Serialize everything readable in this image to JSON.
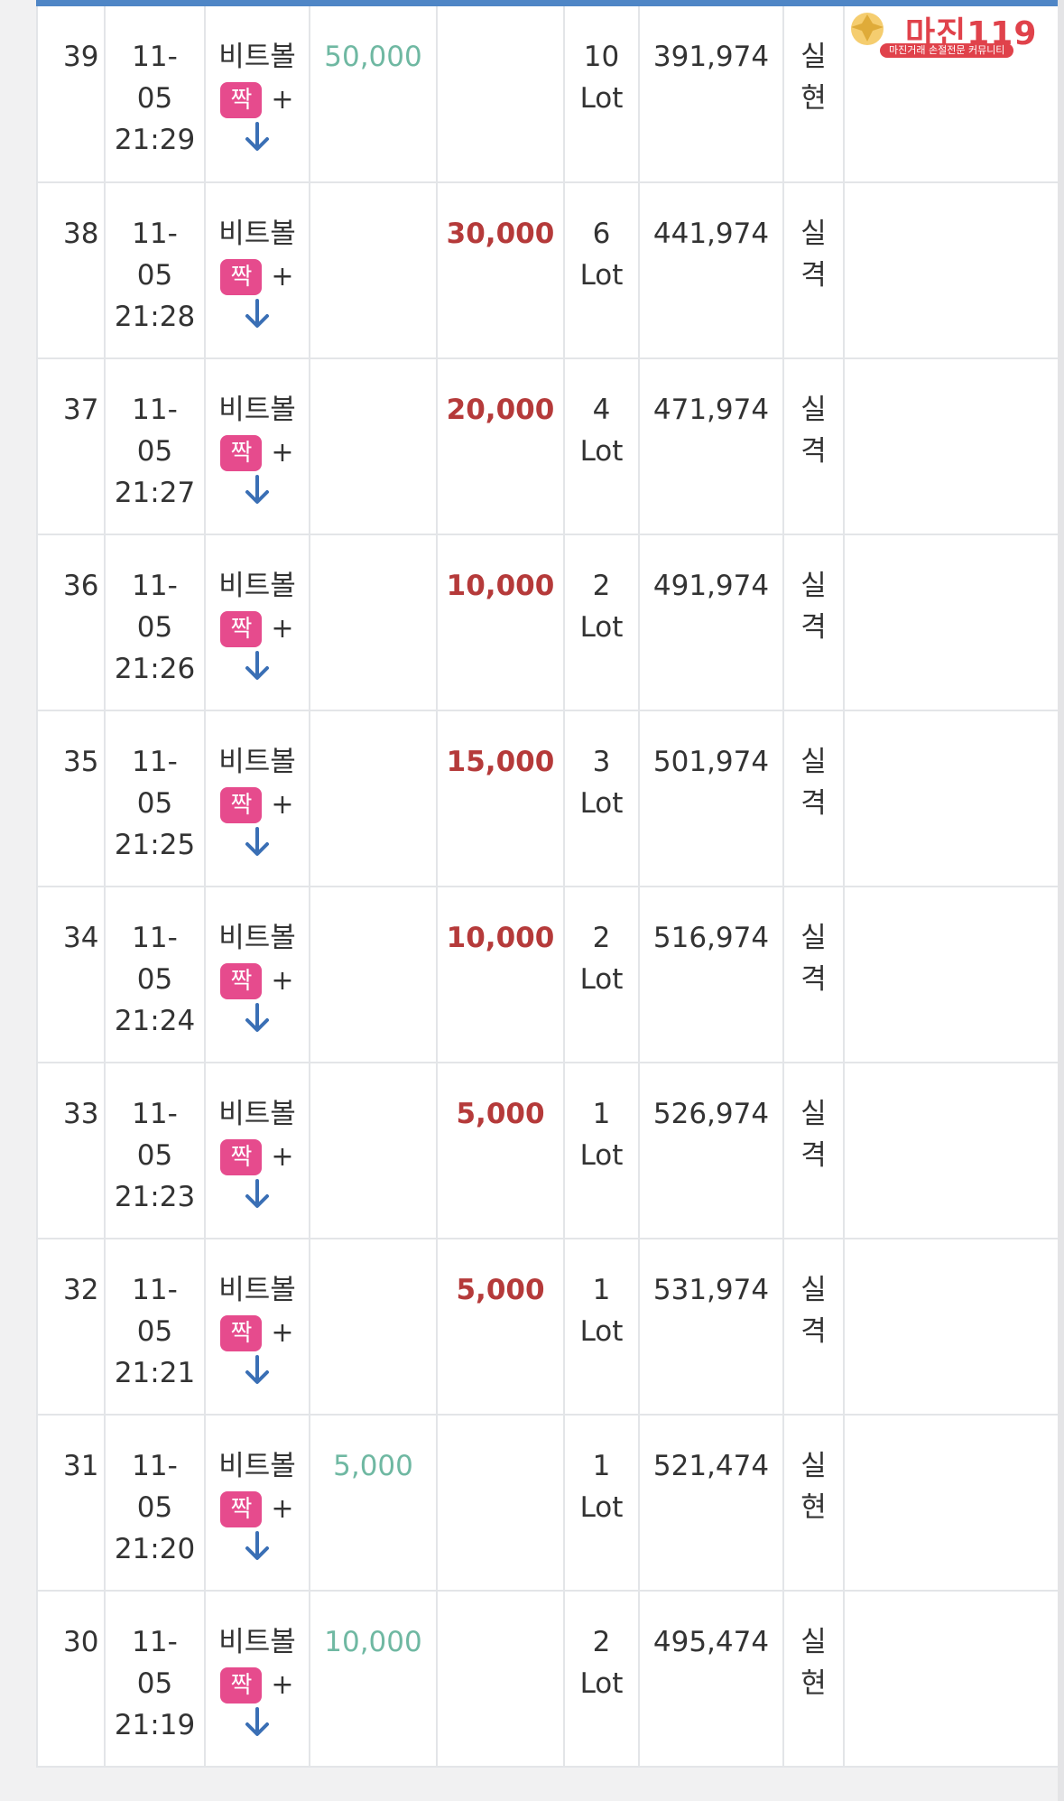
{
  "rows": [
    {
      "no": "39",
      "date": "11-",
      "date2": "05",
      "time": "21:29",
      "game": "비트볼",
      "pick": "짝",
      "plus": "+",
      "win": "50,000",
      "lose": "",
      "lot": "10",
      "lot_unit": "Lot",
      "balance": "391,974",
      "result1": "실",
      "result2": "현",
      "status": "win"
    },
    {
      "no": "38",
      "date": "11-",
      "date2": "05",
      "time": "21:28",
      "game": "비트볼",
      "pick": "짝",
      "plus": "+",
      "win": "",
      "lose": "30,000",
      "lot": "6",
      "lot_unit": "Lot",
      "balance": "441,974",
      "result1": "실",
      "result2": "격",
      "status": "lose"
    },
    {
      "no": "37",
      "date": "11-",
      "date2": "05",
      "time": "21:27",
      "game": "비트볼",
      "pick": "짝",
      "plus": "+",
      "win": "",
      "lose": "20,000",
      "lot": "4",
      "lot_unit": "Lot",
      "balance": "471,974",
      "result1": "실",
      "result2": "격",
      "status": "lose"
    },
    {
      "no": "36",
      "date": "11-",
      "date2": "05",
      "time": "21:26",
      "game": "비트볼",
      "pick": "짝",
      "plus": "+",
      "win": "",
      "lose": "10,000",
      "lot": "2",
      "lot_unit": "Lot",
      "balance": "491,974",
      "result1": "실",
      "result2": "격",
      "status": "lose"
    },
    {
      "no": "35",
      "date": "11-",
      "date2": "05",
      "time": "21:25",
      "game": "비트볼",
      "pick": "짝",
      "plus": "+",
      "win": "",
      "lose": "15,000",
      "lot": "3",
      "lot_unit": "Lot",
      "balance": "501,974",
      "result1": "실",
      "result2": "격",
      "status": "lose"
    },
    {
      "no": "34",
      "date": "11-",
      "date2": "05",
      "time": "21:24",
      "game": "비트볼",
      "pick": "짝",
      "plus": "+",
      "win": "",
      "lose": "10,000",
      "lot": "2",
      "lot_unit": "Lot",
      "balance": "516,974",
      "result1": "실",
      "result2": "격",
      "status": "lose"
    },
    {
      "no": "33",
      "date": "11-",
      "date2": "05",
      "time": "21:23",
      "game": "비트볼",
      "pick": "짝",
      "plus": "+",
      "win": "",
      "lose": "5,000",
      "lot": "1",
      "lot_unit": "Lot",
      "balance": "526,974",
      "result1": "실",
      "result2": "격",
      "status": "lose"
    },
    {
      "no": "32",
      "date": "11-",
      "date2": "05",
      "time": "21:21",
      "game": "비트볼",
      "pick": "짝",
      "plus": "+",
      "win": "",
      "lose": "5,000",
      "lot": "1",
      "lot_unit": "Lot",
      "balance": "531,974",
      "result1": "실",
      "result2": "격",
      "status": "lose"
    },
    {
      "no": "31",
      "date": "11-",
      "date2": "05",
      "time": "21:20",
      "game": "비트볼",
      "pick": "짝",
      "plus": "+",
      "win": "5,000",
      "lose": "",
      "lot": "1",
      "lot_unit": "Lot",
      "balance": "521,474",
      "result1": "실",
      "result2": "현",
      "status": "win"
    },
    {
      "no": "30",
      "date": "11-",
      "date2": "05",
      "time": "21:19",
      "game": "비트볼",
      "pick": "짝",
      "plus": "+",
      "win": "10,000",
      "lose": "",
      "lot": "2",
      "lot_unit": "Lot",
      "balance": "495,474",
      "result1": "실",
      "result2": "현",
      "status": "win"
    }
  ],
  "icons": {
    "direction": "arrow-down-icon"
  },
  "colors": {
    "header_bar": "#4f86c6",
    "win_amount": "#6fb8a2",
    "lose_amount": "#b53a3a",
    "pick_badge": "#e64b8d",
    "result_win": "#3a6fb5",
    "result_lose": "#c43c3c",
    "arrow": "#3a6fb5"
  },
  "watermark": {
    "title": "마진119",
    "subtitle": "마진거래 손절전문 커뮤니티"
  }
}
